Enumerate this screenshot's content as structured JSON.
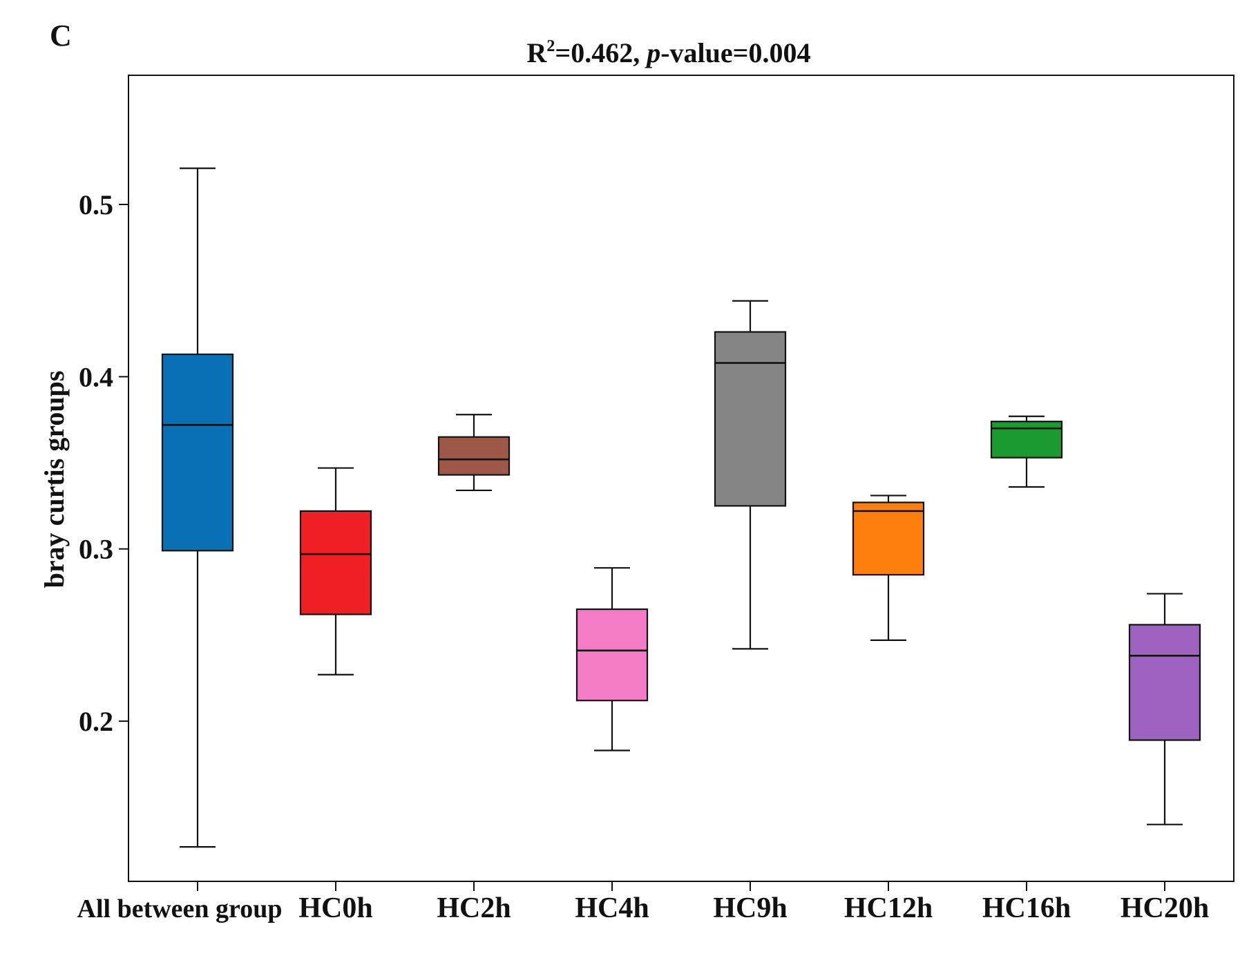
{
  "panel_label": "C",
  "chart_data": {
    "type": "box",
    "title_parts": {
      "r_symbol": "R",
      "r_superscript": "2",
      "r_value": "=0.462, ",
      "p_italic": "p",
      "p_rest": "-value=0.004"
    },
    "title": "R²=0.462, p-value=0.004",
    "xlabel": "",
    "ylabel": "bray curtis groups",
    "ylim": [
      0.107,
      0.575
    ],
    "yticks": [
      0.2,
      0.3,
      0.4,
      0.5
    ],
    "ytick_labels": [
      "0.2",
      "0.3",
      "0.4",
      "0.5"
    ],
    "grid": false,
    "categories": [
      "All between group",
      "HC0h",
      "HC2h",
      "HC4h",
      "HC9h",
      "HC12h",
      "HC16h",
      "HC20h"
    ],
    "boxes": [
      {
        "name": "All between group",
        "min": 0.127,
        "q1": 0.299,
        "median": 0.372,
        "q3": 0.413,
        "max": 0.521,
        "color": "#0a70b6"
      },
      {
        "name": "HC0h",
        "min": 0.227,
        "q1": 0.262,
        "median": 0.297,
        "q3": 0.322,
        "max": 0.347,
        "color": "#ee2024"
      },
      {
        "name": "HC2h",
        "min": 0.334,
        "q1": 0.343,
        "median": 0.352,
        "q3": 0.365,
        "max": 0.378,
        "color": "#9e5848"
      },
      {
        "name": "HC4h",
        "min": 0.183,
        "q1": 0.212,
        "median": 0.241,
        "q3": 0.265,
        "max": 0.289,
        "color": "#f47bc6"
      },
      {
        "name": "HC9h",
        "min": 0.242,
        "q1": 0.325,
        "median": 0.408,
        "q3": 0.426,
        "max": 0.444,
        "color": "#858585"
      },
      {
        "name": "HC12h",
        "min": 0.247,
        "q1": 0.285,
        "median": 0.322,
        "q3": 0.327,
        "max": 0.331,
        "color": "#ff7f0e"
      },
      {
        "name": "HC16h",
        "min": 0.336,
        "q1": 0.353,
        "median": 0.37,
        "q3": 0.374,
        "max": 0.377,
        "color": "#1a9a31"
      },
      {
        "name": "HC20h",
        "min": 0.14,
        "q1": 0.189,
        "median": 0.238,
        "q3": 0.256,
        "max": 0.274,
        "color": "#9e63c0"
      }
    ]
  }
}
